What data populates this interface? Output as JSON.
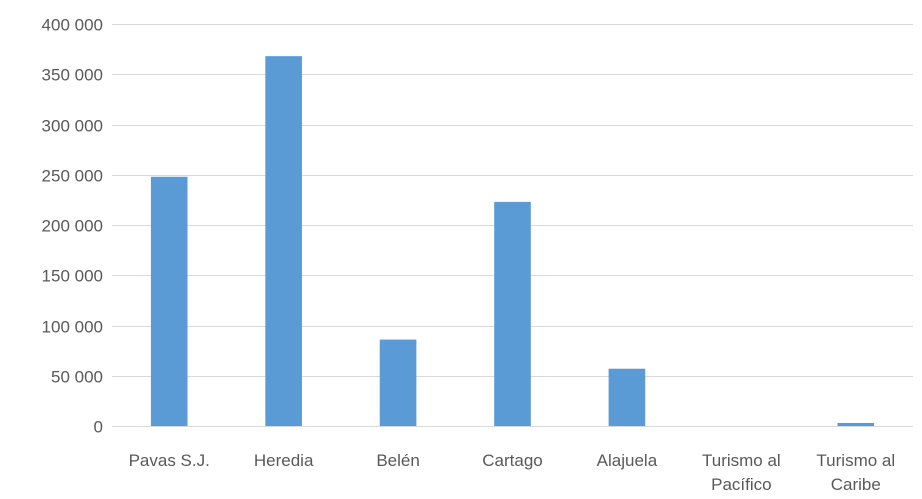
{
  "chart_data": {
    "type": "bar",
    "title": "",
    "xlabel": "",
    "ylabel": "",
    "categories": [
      [
        "Pavas S.J."
      ],
      [
        "Heredia"
      ],
      [
        "Belén"
      ],
      [
        "Cartago"
      ],
      [
        "Alajuela"
      ],
      [
        "Turismo al",
        "Pacífico"
      ],
      [
        "Turismo al",
        "Caribe"
      ]
    ],
    "values": [
      248000,
      368000,
      86000,
      223000,
      57000,
      0,
      3000
    ],
    "ylim": [
      0,
      400000
    ],
    "yticks": [
      0,
      50000,
      100000,
      150000,
      200000,
      250000,
      300000,
      350000,
      400000
    ],
    "ytick_labels": [
      "0",
      "50 000",
      "100 000",
      "150 000",
      "200 000",
      "250 000",
      "300 000",
      "350 000",
      "400 000"
    ],
    "grid": true,
    "legend": "none",
    "bar_color": "#5B9BD5",
    "grid_color": "#D9D9D9",
    "label_color": "#595959"
  }
}
